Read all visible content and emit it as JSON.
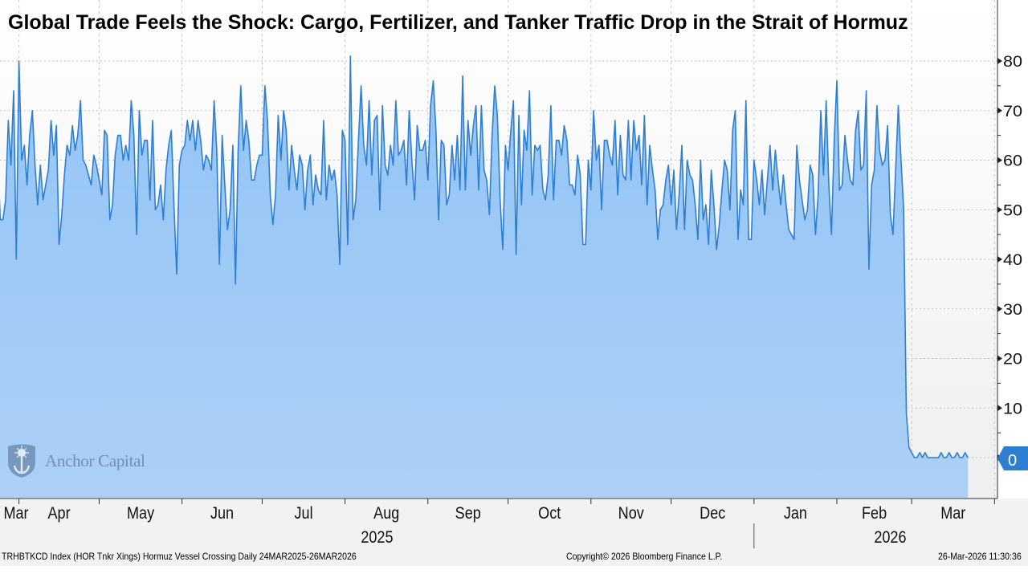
{
  "title": "Global Trade Feels the Shock: Cargo, Fertilizer, and Tanker Traffic Drop in the Strait of Hormuz",
  "watermark": "Anchor Capital",
  "footer": {
    "left": "TRHBTKCD Index (HOR Tnkr Xings) Hormuz Vessel Crossing Daily 24MAR2025-26MAR2026",
    "center": "Copyright© 2026 Bloomberg Finance L.P.",
    "right": "26-Mar-2026 11:30:36"
  },
  "colors": {
    "line": "#2e7fd2",
    "fill": "#9cc9f6",
    "last_value_tag": "#2e7fd2"
  },
  "chart_data": {
    "type": "area",
    "start_date": "2025-03-24",
    "end_date": "2026-03-26",
    "frequency": "daily",
    "ylim": [
      -8,
      92
    ],
    "yticks": [
      0,
      10,
      20,
      30,
      40,
      50,
      60,
      70,
      80
    ],
    "y_axis_side": "right",
    "grid": true,
    "last_value_label": "0",
    "month_labels": [
      "Mar",
      "Apr",
      "May",
      "Jun",
      "Jul",
      "Aug",
      "Sep",
      "Oct",
      "Nov",
      "Dec",
      "Jan",
      "Feb",
      "Mar"
    ],
    "year_labels": [
      "2025",
      "2026"
    ],
    "values": [
      62,
      48,
      48,
      52,
      68,
      59,
      74,
      40,
      80,
      60,
      63,
      55,
      65,
      70,
      59,
      51,
      59,
      52,
      55,
      58,
      68,
      61,
      67,
      43,
      49,
      57,
      63,
      61,
      67,
      62,
      65,
      72,
      60,
      59,
      57,
      55,
      61,
      59,
      56,
      53,
      66,
      65,
      48,
      51,
      61,
      65,
      65,
      60,
      63,
      60,
      72,
      65,
      45,
      70,
      61,
      64,
      64,
      52,
      68,
      50,
      51,
      55,
      48,
      58,
      63,
      66,
      51,
      37,
      59,
      62,
      63,
      68,
      64,
      68,
      62,
      68,
      64,
      58,
      61,
      60,
      58,
      72,
      62,
      39,
      65,
      55,
      46,
      50,
      63,
      35,
      62,
      75,
      62,
      68,
      64,
      56,
      56,
      59,
      61,
      61,
      75,
      68,
      53,
      47,
      53,
      69,
      60,
      70,
      66,
      54,
      63,
      58,
      54,
      61,
      59,
      50,
      58,
      61,
      51,
      57,
      54,
      53,
      68,
      52,
      59,
      56,
      58,
      53,
      39,
      66,
      64,
      43,
      81,
      48,
      52,
      64,
      75,
      63,
      59,
      72,
      57,
      68,
      69,
      50,
      71,
      59,
      57,
      63,
      59,
      72,
      61,
      62,
      64,
      55,
      70,
      60,
      52,
      67,
      62,
      62,
      64,
      56,
      71,
      76,
      66,
      48,
      64,
      63,
      51,
      53,
      63,
      56,
      65,
      54,
      77,
      54,
      68,
      61,
      67,
      71,
      54,
      71,
      58,
      56,
      49,
      65,
      75,
      69,
      52,
      42,
      63,
      58,
      66,
      72,
      41,
      69,
      51,
      66,
      62,
      74,
      53,
      63,
      62,
      63,
      54,
      52,
      57,
      71,
      52,
      64,
      64,
      61,
      67,
      64,
      55,
      55,
      53,
      61,
      57,
      43,
      43,
      60,
      54,
      70,
      60,
      63,
      50,
      64,
      64,
      61,
      59,
      68,
      53,
      65,
      57,
      56,
      68,
      56,
      68,
      62,
      65,
      55,
      69,
      51,
      63,
      58,
      54,
      44,
      50,
      51,
      56,
      59,
      51,
      58,
      46,
      53,
      63,
      46,
      60,
      57,
      56,
      51,
      44,
      60,
      48,
      51,
      43,
      58,
      51,
      42,
      47,
      54,
      60,
      58,
      50,
      66,
      70,
      44,
      54,
      51,
      72,
      44,
      44,
      60,
      56,
      51,
      58,
      49,
      56,
      63,
      54,
      62,
      56,
      51,
      57,
      51,
      46,
      45,
      44,
      63,
      56,
      52,
      48,
      50,
      59,
      57,
      45,
      53,
      70,
      57,
      72,
      55,
      45,
      64,
      76,
      54,
      55,
      65,
      60,
      56,
      55,
      66,
      70,
      58,
      59,
      74,
      38,
      55,
      58,
      71,
      62,
      59,
      60,
      67,
      49,
      45,
      58,
      71,
      60,
      50,
      9,
      2,
      1,
      0,
      0,
      1,
      0,
      1,
      0,
      0,
      0,
      0,
      0,
      1,
      0,
      0,
      1,
      0,
      0,
      1,
      0,
      0,
      1,
      0
    ]
  }
}
